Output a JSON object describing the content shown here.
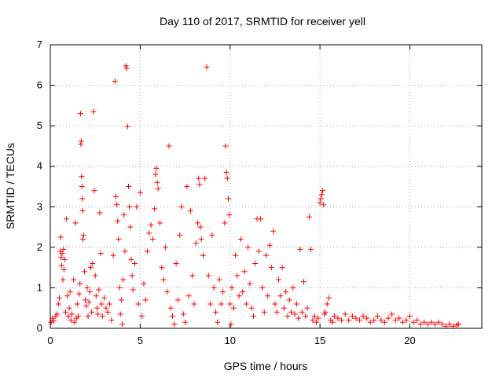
{
  "chart_data": {
    "type": "scatter",
    "title": "Day 110 of 2017, SRMTID for receiver yell",
    "xlabel": "GPS time / hours",
    "ylabel": "SRMTID / TECUs",
    "xlim": [
      0,
      24
    ],
    "ylim": [
      0,
      7
    ],
    "xticks": [
      0,
      5,
      10,
      15,
      20
    ],
    "yticks": [
      0,
      1,
      2,
      3,
      4,
      5,
      6,
      7
    ],
    "grid": true,
    "marker": "plus",
    "series": [
      {
        "name": "SRMTID",
        "color": "#ff0000",
        "points": [
          [
            0.05,
            0.15
          ],
          [
            0.12,
            0.25
          ],
          [
            0.2,
            0.18
          ],
          [
            0.3,
            0.3
          ],
          [
            0.38,
            0.35
          ],
          [
            0.45,
            0.6
          ],
          [
            0.5,
            0.75
          ],
          [
            0.55,
            1.9
          ],
          [
            0.58,
            2.25
          ],
          [
            0.6,
            1.75
          ],
          [
            0.63,
            1.55
          ],
          [
            0.66,
            1.85
          ],
          [
            0.7,
            1.2
          ],
          [
            0.73,
            1.95
          ],
          [
            0.76,
            1.45
          ],
          [
            0.8,
            1.7
          ],
          [
            0.85,
            0.4
          ],
          [
            0.9,
            2.7
          ],
          [
            0.95,
            0.8
          ],
          [
            1.0,
            0.3
          ],
          [
            1.05,
            0.5
          ],
          [
            1.1,
            0.9
          ],
          [
            1.15,
            0.2
          ],
          [
            1.2,
            0.35
          ],
          [
            1.3,
            1.2
          ],
          [
            1.35,
            0.15
          ],
          [
            1.4,
            2.6
          ],
          [
            1.45,
            0.25
          ],
          [
            1.5,
            0.6
          ],
          [
            1.55,
            0.3
          ],
          [
            1.6,
            0.85
          ],
          [
            1.65,
            1.1
          ],
          [
            1.68,
            5.3
          ],
          [
            1.7,
            4.55
          ],
          [
            1.72,
            4.62
          ],
          [
            1.74,
            3.75
          ],
          [
            1.76,
            3.5
          ],
          [
            1.78,
            3.2
          ],
          [
            1.8,
            2.9
          ],
          [
            1.82,
            2.2
          ],
          [
            1.85,
            2.3
          ],
          [
            1.9,
            1.4
          ],
          [
            1.95,
            0.7
          ],
          [
            2.0,
            0.55
          ],
          [
            2.05,
            1.0
          ],
          [
            2.1,
            0.3
          ],
          [
            2.15,
            0.65
          ],
          [
            2.2,
            0.9
          ],
          [
            2.25,
            1.5
          ],
          [
            2.3,
            0.4
          ],
          [
            2.35,
            1.6
          ],
          [
            2.4,
            5.35
          ],
          [
            2.45,
            3.4
          ],
          [
            2.5,
            1.3
          ],
          [
            2.55,
            0.8
          ],
          [
            2.6,
            0.5
          ],
          [
            2.65,
            0.35
          ],
          [
            2.7,
            0.95
          ],
          [
            2.75,
            2.85
          ],
          [
            2.8,
            1.85
          ],
          [
            2.85,
            0.6
          ],
          [
            2.9,
            0.3
          ],
          [
            3.0,
            0.75
          ],
          [
            3.1,
            0.5
          ],
          [
            3.2,
            0.4
          ],
          [
            3.3,
            0.6
          ],
          [
            3.4,
            0.2
          ],
          [
            3.5,
            1.8
          ],
          [
            3.6,
            6.1
          ],
          [
            3.65,
            3.25
          ],
          [
            3.7,
            3.05
          ],
          [
            3.75,
            2.65
          ],
          [
            3.8,
            2.2
          ],
          [
            3.85,
            1.0
          ],
          [
            3.9,
            0.35
          ],
          [
            3.95,
            0.7
          ],
          [
            4.0,
            0.1
          ],
          [
            4.05,
            1.2
          ],
          [
            4.1,
            2.8
          ],
          [
            4.15,
            1.9
          ],
          [
            4.2,
            6.48
          ],
          [
            4.25,
            6.42
          ],
          [
            4.3,
            4.98
          ],
          [
            4.35,
            3.5
          ],
          [
            4.4,
            3.0
          ],
          [
            4.45,
            2.5
          ],
          [
            4.5,
            1.7
          ],
          [
            4.55,
            1.3
          ],
          [
            4.6,
            0.95
          ],
          [
            4.7,
            1.6
          ],
          [
            4.8,
            3.0
          ],
          [
            4.9,
            0.6
          ],
          [
            5.0,
            3.35
          ],
          [
            5.1,
            0.3
          ],
          [
            5.2,
            1.1
          ],
          [
            5.3,
            0.7
          ],
          [
            5.4,
            1.9
          ],
          [
            5.5,
            2.35
          ],
          [
            5.6,
            2.55
          ],
          [
            5.7,
            2.2
          ],
          [
            5.8,
            2.95
          ],
          [
            5.85,
            3.8
          ],
          [
            5.9,
            3.95
          ],
          [
            5.95,
            3.6
          ],
          [
            6.0,
            3.45
          ],
          [
            6.1,
            2.6
          ],
          [
            6.2,
            1.5
          ],
          [
            6.3,
            1.2
          ],
          [
            6.4,
            2.0
          ],
          [
            6.5,
            0.9
          ],
          [
            6.6,
            4.5
          ],
          [
            6.7,
            0.5
          ],
          [
            6.8,
            0.3
          ],
          [
            6.9,
            0.1
          ],
          [
            7.0,
            1.6
          ],
          [
            7.1,
            0.7
          ],
          [
            7.2,
            2.3
          ],
          [
            7.3,
            3.0
          ],
          [
            7.4,
            0.35
          ],
          [
            7.5,
            0.15
          ],
          [
            7.6,
            3.5
          ],
          [
            7.7,
            0.8
          ],
          [
            7.8,
            2.9
          ],
          [
            7.9,
            1.3
          ],
          [
            8.0,
            0.6
          ],
          [
            8.1,
            2.1
          ],
          [
            8.2,
            2.6
          ],
          [
            8.25,
            3.7
          ],
          [
            8.3,
            3.55
          ],
          [
            8.35,
            2.5
          ],
          [
            8.4,
            2.2
          ],
          [
            8.5,
            1.8
          ],
          [
            8.6,
            3.7
          ],
          [
            8.7,
            6.45
          ],
          [
            8.8,
            1.3
          ],
          [
            8.9,
            0.6
          ],
          [
            9.0,
            2.3
          ],
          [
            9.1,
            1.0
          ],
          [
            9.2,
            0.4
          ],
          [
            9.3,
            0.15
          ],
          [
            9.4,
            1.2
          ],
          [
            9.5,
            0.6
          ],
          [
            9.6,
            0.9
          ],
          [
            9.7,
            2.6
          ],
          [
            9.75,
            4.5
          ],
          [
            9.8,
            3.85
          ],
          [
            9.85,
            3.7
          ],
          [
            9.9,
            3.2
          ],
          [
            9.95,
            2.8
          ],
          [
            10.0,
            0.6
          ],
          [
            10.05,
            0.1
          ],
          [
            10.1,
            1.0
          ],
          [
            10.2,
            0.5
          ],
          [
            10.3,
            1.8
          ],
          [
            10.4,
            1.3
          ],
          [
            10.5,
            0.8
          ],
          [
            10.6,
            2.2
          ],
          [
            10.7,
            0.9
          ],
          [
            10.8,
            1.4
          ],
          [
            10.9,
            0.6
          ],
          [
            11.0,
            2.0
          ],
          [
            11.1,
            1.1
          ],
          [
            11.2,
            0.5
          ],
          [
            11.3,
            0.3
          ],
          [
            11.4,
            1.6
          ],
          [
            11.5,
            2.7
          ],
          [
            11.6,
            1.9
          ],
          [
            11.7,
            2.7
          ],
          [
            11.8,
            1.0
          ],
          [
            11.9,
            0.4
          ],
          [
            12.0,
            1.8
          ],
          [
            12.1,
            0.8
          ],
          [
            12.2,
            2.05
          ],
          [
            12.3,
            1.5
          ],
          [
            12.4,
            2.4
          ],
          [
            12.5,
            0.6
          ],
          [
            12.6,
            0.4
          ],
          [
            12.7,
            1.2
          ],
          [
            12.8,
            0.8
          ],
          [
            12.9,
            1.5
          ],
          [
            13.0,
            0.5
          ],
          [
            13.1,
            0.9
          ],
          [
            13.2,
            0.3
          ],
          [
            13.3,
            0.7
          ],
          [
            13.4,
            0.4
          ],
          [
            13.5,
            1.0
          ],
          [
            13.6,
            0.35
          ],
          [
            13.7,
            0.6
          ],
          [
            13.8,
            0.25
          ],
          [
            13.9,
            1.95
          ],
          [
            14.0,
            0.4
          ],
          [
            14.1,
            1.15
          ],
          [
            14.2,
            0.3
          ],
          [
            14.3,
            0.5
          ],
          [
            14.4,
            2.75
          ],
          [
            14.5,
            1.95
          ],
          [
            14.6,
            0.2
          ],
          [
            14.7,
            0.3
          ],
          [
            14.8,
            0.15
          ],
          [
            14.9,
            0.25
          ],
          [
            15.0,
            3.1
          ],
          [
            15.05,
            3.2
          ],
          [
            15.1,
            3.3
          ],
          [
            15.15,
            3.4
          ],
          [
            15.2,
            3.05
          ],
          [
            15.25,
            0.35
          ],
          [
            15.3,
            0.4
          ],
          [
            15.4,
            0.6
          ],
          [
            15.5,
            0.75
          ],
          [
            15.6,
            0.2
          ],
          [
            15.7,
            0.15
          ],
          [
            15.8,
            0.3
          ],
          [
            16.0,
            0.25
          ],
          [
            16.2,
            0.2
          ],
          [
            16.4,
            0.35
          ],
          [
            16.6,
            0.2
          ],
          [
            16.8,
            0.3
          ],
          [
            17.0,
            0.25
          ],
          [
            17.2,
            0.2
          ],
          [
            17.4,
            0.3
          ],
          [
            17.6,
            0.25
          ],
          [
            17.8,
            0.15
          ],
          [
            18.0,
            0.2
          ],
          [
            18.2,
            0.3
          ],
          [
            18.4,
            0.2
          ],
          [
            18.6,
            0.15
          ],
          [
            18.8,
            0.25
          ],
          [
            19.0,
            0.35
          ],
          [
            19.2,
            0.2
          ],
          [
            19.4,
            0.25
          ],
          [
            19.6,
            0.15
          ],
          [
            19.8,
            0.2
          ],
          [
            20.0,
            0.3
          ],
          [
            20.2,
            0.15
          ],
          [
            20.4,
            0.2
          ],
          [
            20.6,
            0.1
          ],
          [
            20.8,
            0.15
          ],
          [
            21.0,
            0.1
          ],
          [
            21.2,
            0.15
          ],
          [
            21.4,
            0.1
          ],
          [
            21.6,
            0.15
          ],
          [
            21.8,
            0.1
          ],
          [
            22.0,
            0.05
          ],
          [
            22.2,
            0.1
          ],
          [
            22.4,
            0.05
          ],
          [
            22.6,
            0.08
          ],
          [
            22.7,
            0.1
          ]
        ]
      }
    ]
  }
}
